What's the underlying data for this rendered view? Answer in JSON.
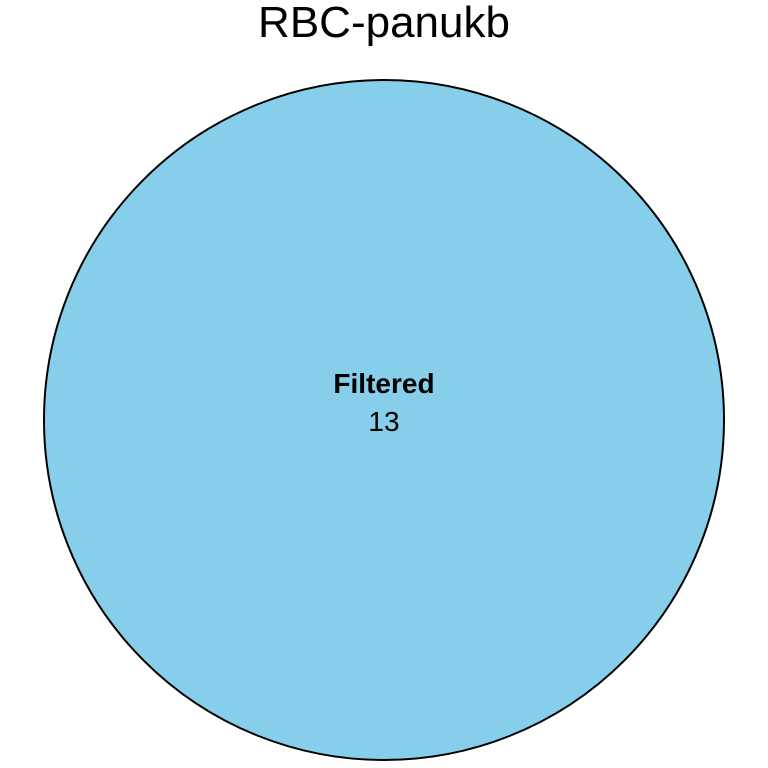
{
  "diagram": {
    "title": "RBC-panukb",
    "sets": [
      {
        "name": "Filtered",
        "count": "13",
        "fill_color": "#87CEEB",
        "stroke_color": "#000000"
      }
    ]
  }
}
